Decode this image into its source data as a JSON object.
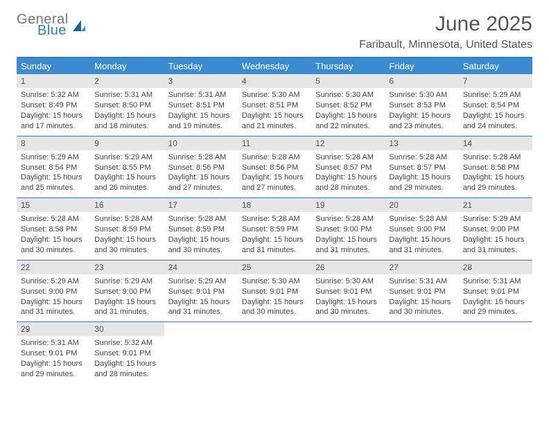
{
  "brand": {
    "line1": "General",
    "line2": "Blue"
  },
  "title": "June 2025",
  "location": "Faribault, Minnesota, United States",
  "colors": {
    "header_bg": "#3a8bd0",
    "border": "#2f7bbf",
    "daynum_bg": "#e6e6e6",
    "text": "#444444",
    "page_bg": "#ffffff"
  },
  "weekdays": [
    "Sunday",
    "Monday",
    "Tuesday",
    "Wednesday",
    "Thursday",
    "Friday",
    "Saturday"
  ],
  "days": [
    {
      "n": "1",
      "sunrise": "5:32 AM",
      "sunset": "8:49 PM",
      "daylight": "15 hours and 17 minutes."
    },
    {
      "n": "2",
      "sunrise": "5:31 AM",
      "sunset": "8:50 PM",
      "daylight": "15 hours and 18 minutes."
    },
    {
      "n": "3",
      "sunrise": "5:31 AM",
      "sunset": "8:51 PM",
      "daylight": "15 hours and 19 minutes."
    },
    {
      "n": "4",
      "sunrise": "5:30 AM",
      "sunset": "8:51 PM",
      "daylight": "15 hours and 21 minutes."
    },
    {
      "n": "5",
      "sunrise": "5:30 AM",
      "sunset": "8:52 PM",
      "daylight": "15 hours and 22 minutes."
    },
    {
      "n": "6",
      "sunrise": "5:30 AM",
      "sunset": "8:53 PM",
      "daylight": "15 hours and 23 minutes."
    },
    {
      "n": "7",
      "sunrise": "5:29 AM",
      "sunset": "8:54 PM",
      "daylight": "15 hours and 24 minutes."
    },
    {
      "n": "8",
      "sunrise": "5:29 AM",
      "sunset": "8:54 PM",
      "daylight": "15 hours and 25 minutes."
    },
    {
      "n": "9",
      "sunrise": "5:29 AM",
      "sunset": "8:55 PM",
      "daylight": "15 hours and 26 minutes."
    },
    {
      "n": "10",
      "sunrise": "5:28 AM",
      "sunset": "8:56 PM",
      "daylight": "15 hours and 27 minutes."
    },
    {
      "n": "11",
      "sunrise": "5:28 AM",
      "sunset": "8:56 PM",
      "daylight": "15 hours and 27 minutes."
    },
    {
      "n": "12",
      "sunrise": "5:28 AM",
      "sunset": "8:57 PM",
      "daylight": "15 hours and 28 minutes."
    },
    {
      "n": "13",
      "sunrise": "5:28 AM",
      "sunset": "8:57 PM",
      "daylight": "15 hours and 29 minutes."
    },
    {
      "n": "14",
      "sunrise": "5:28 AM",
      "sunset": "8:58 PM",
      "daylight": "15 hours and 29 minutes."
    },
    {
      "n": "15",
      "sunrise": "5:28 AM",
      "sunset": "8:58 PM",
      "daylight": "15 hours and 30 minutes."
    },
    {
      "n": "16",
      "sunrise": "5:28 AM",
      "sunset": "8:59 PM",
      "daylight": "15 hours and 30 minutes."
    },
    {
      "n": "17",
      "sunrise": "5:28 AM",
      "sunset": "8:59 PM",
      "daylight": "15 hours and 30 minutes."
    },
    {
      "n": "18",
      "sunrise": "5:28 AM",
      "sunset": "8:59 PM",
      "daylight": "15 hours and 31 minutes."
    },
    {
      "n": "19",
      "sunrise": "5:28 AM",
      "sunset": "9:00 PM",
      "daylight": "15 hours and 31 minutes."
    },
    {
      "n": "20",
      "sunrise": "5:28 AM",
      "sunset": "9:00 PM",
      "daylight": "15 hours and 31 minutes."
    },
    {
      "n": "21",
      "sunrise": "5:29 AM",
      "sunset": "9:00 PM",
      "daylight": "15 hours and 31 minutes."
    },
    {
      "n": "22",
      "sunrise": "5:29 AM",
      "sunset": "9:00 PM",
      "daylight": "15 hours and 31 minutes."
    },
    {
      "n": "23",
      "sunrise": "5:29 AM",
      "sunset": "9:00 PM",
      "daylight": "15 hours and 31 minutes."
    },
    {
      "n": "24",
      "sunrise": "5:29 AM",
      "sunset": "9:01 PM",
      "daylight": "15 hours and 31 minutes."
    },
    {
      "n": "25",
      "sunrise": "5:30 AM",
      "sunset": "9:01 PM",
      "daylight": "15 hours and 30 minutes."
    },
    {
      "n": "26",
      "sunrise": "5:30 AM",
      "sunset": "9:01 PM",
      "daylight": "15 hours and 30 minutes."
    },
    {
      "n": "27",
      "sunrise": "5:31 AM",
      "sunset": "9:01 PM",
      "daylight": "15 hours and 30 minutes."
    },
    {
      "n": "28",
      "sunrise": "5:31 AM",
      "sunset": "9:01 PM",
      "daylight": "15 hours and 29 minutes."
    },
    {
      "n": "29",
      "sunrise": "5:31 AM",
      "sunset": "9:01 PM",
      "daylight": "15 hours and 29 minutes."
    },
    {
      "n": "30",
      "sunrise": "5:32 AM",
      "sunset": "9:01 PM",
      "daylight": "15 hours and 28 minutes."
    }
  ],
  "labels": {
    "sunrise": "Sunrise:",
    "sunset": "Sunset:",
    "daylight": "Daylight:"
  }
}
